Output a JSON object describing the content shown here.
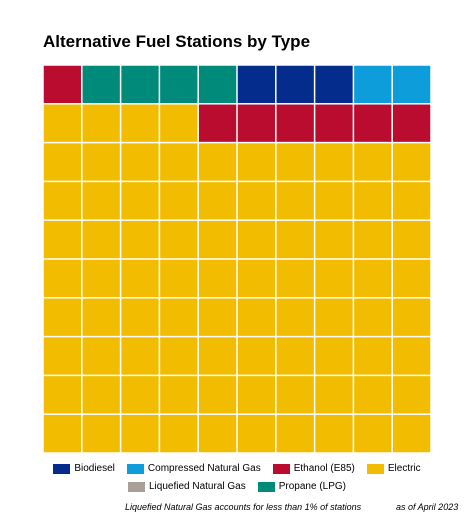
{
  "chart_data": {
    "type": "waffle",
    "title": "Alternative Fuel Stations by Type",
    "grid": {
      "rows": 10,
      "columns": 10,
      "total_units": 100
    },
    "fill_order": "row-major from top-left",
    "series": [
      {
        "name": "Ethanol (E85)",
        "color": "#ba0c2f",
        "cells_row1_start": 1,
        "cells_row2": 6
      },
      {
        "name": "Propane (LPG)",
        "color": "#008a7a",
        "cells": 4
      },
      {
        "name": "Biodiesel",
        "color": "#032c8c",
        "cells": 3
      },
      {
        "name": "Compressed Natural Gas",
        "color": "#0d9ddb",
        "cells": 2
      },
      {
        "name": "Electric",
        "color": "#f2bc00",
        "cells": 84
      },
      {
        "name": "Liquefied Natural Gas",
        "color": "#a89f98",
        "cells": 0
      }
    ],
    "cells": [
      "Ethanol (E85)",
      "Propane (LPG)",
      "Propane (LPG)",
      "Propane (LPG)",
      "Propane (LPG)",
      "Biodiesel",
      "Biodiesel",
      "Biodiesel",
      "Compressed Natural Gas",
      "Compressed Natural Gas",
      "Electric",
      "Electric",
      "Electric",
      "Electric",
      "Ethanol (E85)",
      "Ethanol (E85)",
      "Ethanol (E85)",
      "Ethanol (E85)",
      "Ethanol (E85)",
      "Ethanol (E85)",
      "Electric",
      "Electric",
      "Electric",
      "Electric",
      "Electric",
      "Electric",
      "Electric",
      "Electric",
      "Electric",
      "Electric",
      "Electric",
      "Electric",
      "Electric",
      "Electric",
      "Electric",
      "Electric",
      "Electric",
      "Electric",
      "Electric",
      "Electric",
      "Electric",
      "Electric",
      "Electric",
      "Electric",
      "Electric",
      "Electric",
      "Electric",
      "Electric",
      "Electric",
      "Electric",
      "Electric",
      "Electric",
      "Electric",
      "Electric",
      "Electric",
      "Electric",
      "Electric",
      "Electric",
      "Electric",
      "Electric",
      "Electric",
      "Electric",
      "Electric",
      "Electric",
      "Electric",
      "Electric",
      "Electric",
      "Electric",
      "Electric",
      "Electric",
      "Electric",
      "Electric",
      "Electric",
      "Electric",
      "Electric",
      "Electric",
      "Electric",
      "Electric",
      "Electric",
      "Electric",
      "Electric",
      "Electric",
      "Electric",
      "Electric",
      "Electric",
      "Electric",
      "Electric",
      "Electric",
      "Electric",
      "Electric",
      "Electric",
      "Electric",
      "Electric",
      "Electric",
      "Electric",
      "Electric",
      "Electric",
      "Electric",
      "Electric",
      "Electric"
    ],
    "legend": {
      "placement": "bottom",
      "row1": [
        {
          "label": "Biodiesel",
          "color": "#032c8c"
        },
        {
          "label": "Compressed Natural Gas",
          "color": "#0d9ddb"
        },
        {
          "label": "Ethanol (E85)",
          "color": "#ba0c2f"
        },
        {
          "label": "Electric",
          "color": "#f2bc00"
        }
      ],
      "row2": [
        {
          "label": "Liquefied Natural Gas",
          "color": "#a89f98"
        },
        {
          "label": "Propane (LPG)",
          "color": "#008a7a"
        }
      ]
    },
    "footnote": "Liquefied Natural Gas accounts for less than 1% of stations",
    "date_note": "as of April 2023"
  }
}
